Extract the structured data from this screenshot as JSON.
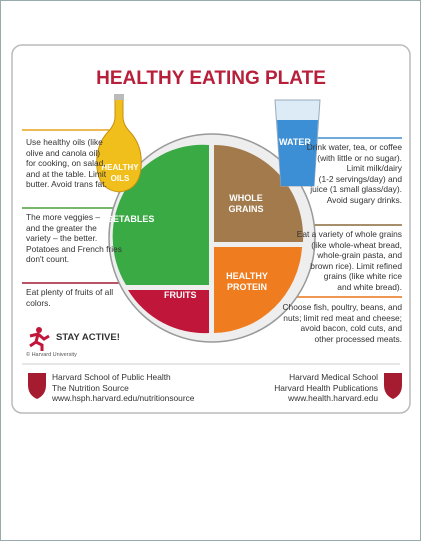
{
  "title": "HEALTHY EATING PLATE",
  "plate": {
    "vegetables": "VEGETABLES",
    "fruits": "FRUITS",
    "grains": [
      "WHOLE",
      "GRAINS"
    ],
    "protein": [
      "HEALTHY",
      "PROTEIN"
    ]
  },
  "oil_label": [
    "HEALTHY",
    "OILS"
  ],
  "water_label": "WATER",
  "left_notes": [
    [
      "Use healthy oils (like",
      "olive and canola oil)",
      "for cooking, on salad,",
      "and at the table. Limit",
      "butter. Avoid trans fat."
    ],
    [
      "The more veggies –",
      "and the greater the",
      "variety – the better.",
      "Potatoes and French fries",
      "don't count."
    ],
    [
      "Eat plenty of fruits of all",
      "colors."
    ]
  ],
  "right_notes": [
    [
      "Drink water, tea, or coffee",
      "(with little or no sugar).",
      "Limit milk/dairy",
      "(1-2 servings/day) and",
      "juice (1 small glass/day).",
      "Avoid sugary drinks."
    ],
    [
      "Eat a variety of whole grains",
      "(like whole-wheat bread,",
      "whole-grain pasta, and",
      "brown rice). Limit refined",
      "grains (like white rice",
      "and white bread)."
    ],
    [
      "Choose fish, poultry, beans, and",
      "nuts;  limit red meat and cheese;",
      "avoid bacon, cold cuts,  and",
      "other processed meats."
    ]
  ],
  "stay_active": "STAY ACTIVE!",
  "copyright": "© Harvard University",
  "footer_left": [
    "Harvard School of Public Health",
    "The Nutrition Source",
    "www.hsph.harvard.edu/nutritionsource"
  ],
  "footer_right": [
    "Harvard Medical School",
    "Harvard Health Publications",
    "www.health.harvard.edu"
  ]
}
